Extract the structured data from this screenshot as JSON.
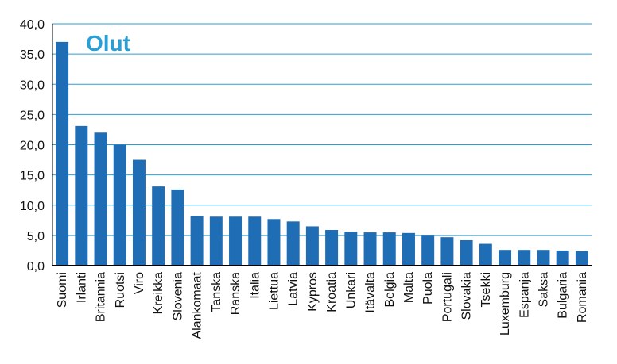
{
  "chart_data": {
    "type": "bar",
    "title": "Olut",
    "categories": [
      "Suomi",
      "Irlanti",
      "Britannia",
      "Ruotsi",
      "Viro",
      "Kreikka",
      "Slovenia",
      "Alankomaat",
      "Tanska",
      "Ranska",
      "Italia",
      "Liettua",
      "Latvia",
      "Kypros",
      "Kroatia",
      "Unkari",
      "Itävalta",
      "Belgia",
      "Malta",
      "Puola",
      "Portugali",
      "Slovakia",
      "Tsekki",
      "Luxemburg",
      "Espanja",
      "Saksa",
      "Bulgaria",
      "Romania"
    ],
    "values": [
      37.0,
      23.1,
      22.0,
      20.0,
      17.5,
      13.1,
      12.6,
      8.2,
      8.1,
      8.1,
      8.1,
      7.7,
      7.3,
      6.5,
      5.9,
      5.6,
      5.5,
      5.5,
      5.4,
      5.1,
      4.7,
      4.2,
      3.6,
      2.6,
      2.6,
      2.6,
      2.5,
      2.4
    ],
    "yticks": [
      "0,0",
      "5,0",
      "10,0",
      "15,0",
      "20,0",
      "25,0",
      "30,0",
      "35,0",
      "40,0"
    ],
    "ylim": [
      0,
      40
    ],
    "grid": true,
    "colors": {
      "bar": "#1f6db5",
      "grid": "#2a9fd6",
      "title": "#2a9fd6",
      "axis": "#000000"
    }
  }
}
